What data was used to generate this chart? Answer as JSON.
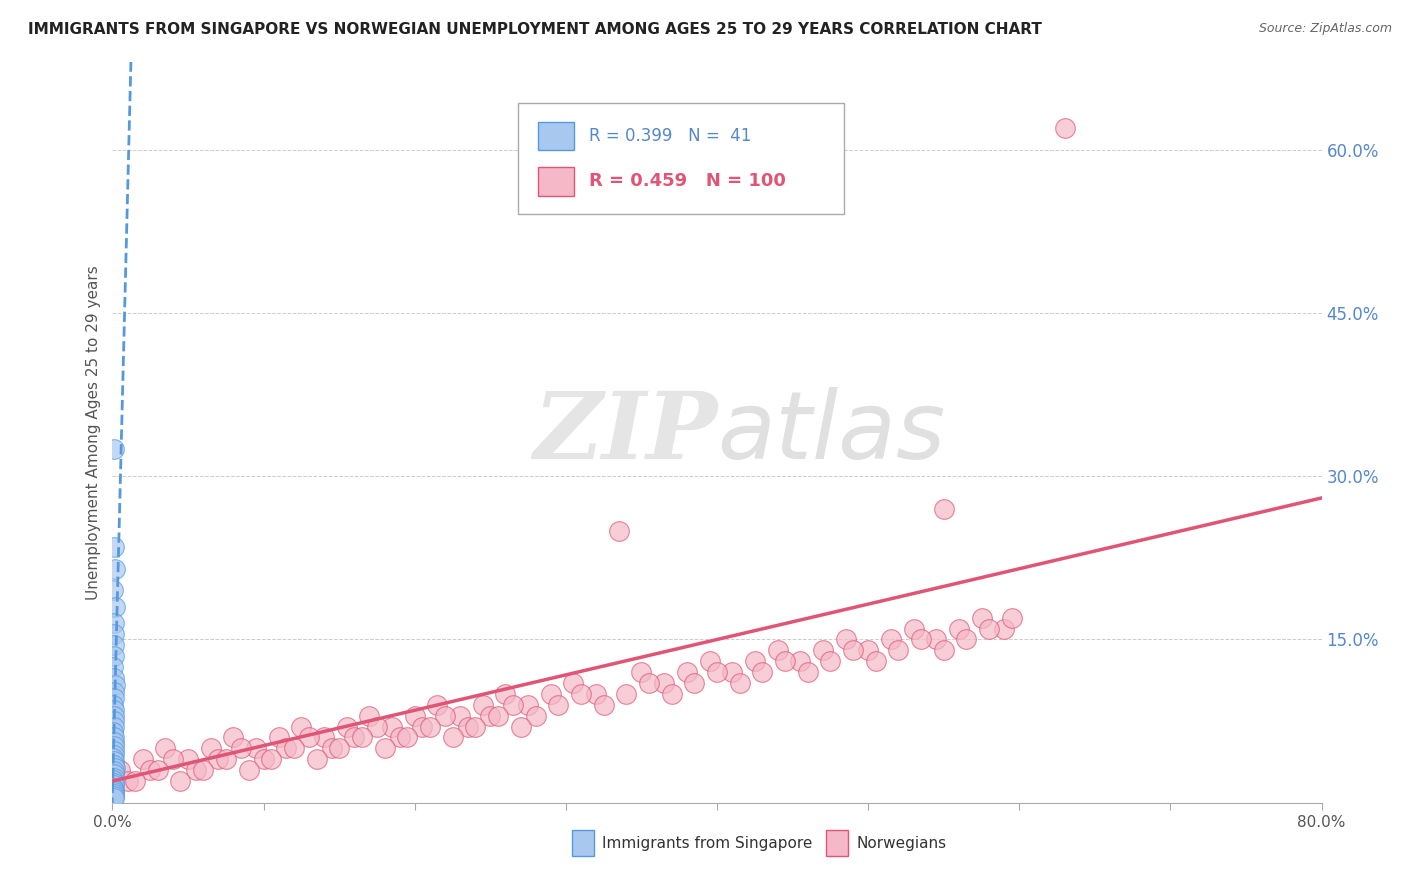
{
  "title": "IMMIGRANTS FROM SINGAPORE VS NORWEGIAN UNEMPLOYMENT AMONG AGES 25 TO 29 YEARS CORRELATION CHART",
  "source": "Source: ZipAtlas.com",
  "ylabel": "Unemployment Among Ages 25 to 29 years",
  "xlim": [
    0.0,
    0.8
  ],
  "ylim": [
    0.0,
    0.68
  ],
  "xticks": [
    0.0,
    0.1,
    0.2,
    0.3,
    0.4,
    0.5,
    0.6,
    0.7,
    0.8
  ],
  "xticklabels": [
    "0.0%",
    "",
    "",
    "",
    "",
    "",
    "",
    "",
    "80.0%"
  ],
  "yticks_right": [
    0.0,
    0.15,
    0.3,
    0.45,
    0.6
  ],
  "yticklabels_right": [
    "",
    "15.0%",
    "30.0%",
    "45.0%",
    "60.0%"
  ],
  "legend1_R": "0.399",
  "legend1_N": "41",
  "legend2_R": "0.459",
  "legend2_N": "100",
  "blue_color": "#a8c8f0",
  "blue_line_color": "#5599dd",
  "pink_color": "#f5b8c8",
  "pink_line_color": "#e05575",
  "watermark_color": "#e8e8e8",
  "sg_trend_slope": 55.0,
  "sg_trend_intercept": 0.01,
  "sg_trend_xmax": 0.016,
  "no_trend_slope": 0.325,
  "no_trend_intercept": 0.02,
  "singapore_scatter_x": [
    0.0008,
    0.0012,
    0.0015,
    0.0005,
    0.0018,
    0.001,
    0.0007,
    0.0009,
    0.0013,
    0.0006,
    0.0011,
    0.0014,
    0.0008,
    0.001,
    0.0006,
    0.0009,
    0.0012,
    0.0007,
    0.001,
    0.0005,
    0.0008,
    0.0011,
    0.0007,
    0.0013,
    0.0009,
    0.0006,
    0.001,
    0.0008,
    0.0014,
    0.0007,
    0.0009,
    0.0011,
    0.0006,
    0.0008,
    0.0012,
    0.0005,
    0.0009,
    0.001,
    0.0013,
    0.0007,
    0.0011
  ],
  "singapore_scatter_y": [
    0.325,
    0.235,
    0.215,
    0.195,
    0.18,
    0.165,
    0.155,
    0.145,
    0.135,
    0.125,
    0.115,
    0.108,
    0.102,
    0.096,
    0.09,
    0.085,
    0.08,
    0.075,
    0.07,
    0.065,
    0.06,
    0.056,
    0.052,
    0.048,
    0.044,
    0.041,
    0.038,
    0.035,
    0.032,
    0.029,
    0.026,
    0.023,
    0.021,
    0.018,
    0.016,
    0.014,
    0.012,
    0.01,
    0.008,
    0.006,
    0.004
  ],
  "norwegian_scatter_x": [
    0.005,
    0.02,
    0.035,
    0.05,
    0.065,
    0.08,
    0.095,
    0.11,
    0.125,
    0.14,
    0.155,
    0.17,
    0.185,
    0.2,
    0.215,
    0.23,
    0.245,
    0.26,
    0.275,
    0.29,
    0.305,
    0.32,
    0.335,
    0.35,
    0.365,
    0.38,
    0.395,
    0.41,
    0.425,
    0.44,
    0.455,
    0.47,
    0.485,
    0.5,
    0.515,
    0.53,
    0.545,
    0.56,
    0.575,
    0.59,
    0.01,
    0.025,
    0.04,
    0.055,
    0.07,
    0.085,
    0.1,
    0.115,
    0.13,
    0.145,
    0.16,
    0.175,
    0.19,
    0.205,
    0.22,
    0.235,
    0.25,
    0.265,
    0.28,
    0.295,
    0.31,
    0.325,
    0.34,
    0.355,
    0.37,
    0.385,
    0.4,
    0.415,
    0.43,
    0.445,
    0.46,
    0.475,
    0.49,
    0.505,
    0.52,
    0.535,
    0.55,
    0.565,
    0.58,
    0.595,
    0.015,
    0.03,
    0.045,
    0.06,
    0.075,
    0.09,
    0.105,
    0.12,
    0.135,
    0.15,
    0.165,
    0.18,
    0.195,
    0.21,
    0.225,
    0.24,
    0.255,
    0.27,
    0.55,
    0.63
  ],
  "norwegian_scatter_y": [
    0.03,
    0.04,
    0.05,
    0.04,
    0.05,
    0.06,
    0.05,
    0.06,
    0.07,
    0.06,
    0.07,
    0.08,
    0.07,
    0.08,
    0.09,
    0.08,
    0.09,
    0.1,
    0.09,
    0.1,
    0.11,
    0.1,
    0.25,
    0.12,
    0.11,
    0.12,
    0.13,
    0.12,
    0.13,
    0.14,
    0.13,
    0.14,
    0.15,
    0.14,
    0.15,
    0.16,
    0.15,
    0.16,
    0.17,
    0.16,
    0.02,
    0.03,
    0.04,
    0.03,
    0.04,
    0.05,
    0.04,
    0.05,
    0.06,
    0.05,
    0.06,
    0.07,
    0.06,
    0.07,
    0.08,
    0.07,
    0.08,
    0.09,
    0.08,
    0.09,
    0.1,
    0.09,
    0.1,
    0.11,
    0.1,
    0.11,
    0.12,
    0.11,
    0.12,
    0.13,
    0.12,
    0.13,
    0.14,
    0.13,
    0.14,
    0.15,
    0.14,
    0.15,
    0.16,
    0.17,
    0.02,
    0.03,
    0.02,
    0.03,
    0.04,
    0.03,
    0.04,
    0.05,
    0.04,
    0.05,
    0.06,
    0.05,
    0.06,
    0.07,
    0.06,
    0.07,
    0.08,
    0.07,
    0.27,
    0.62
  ]
}
